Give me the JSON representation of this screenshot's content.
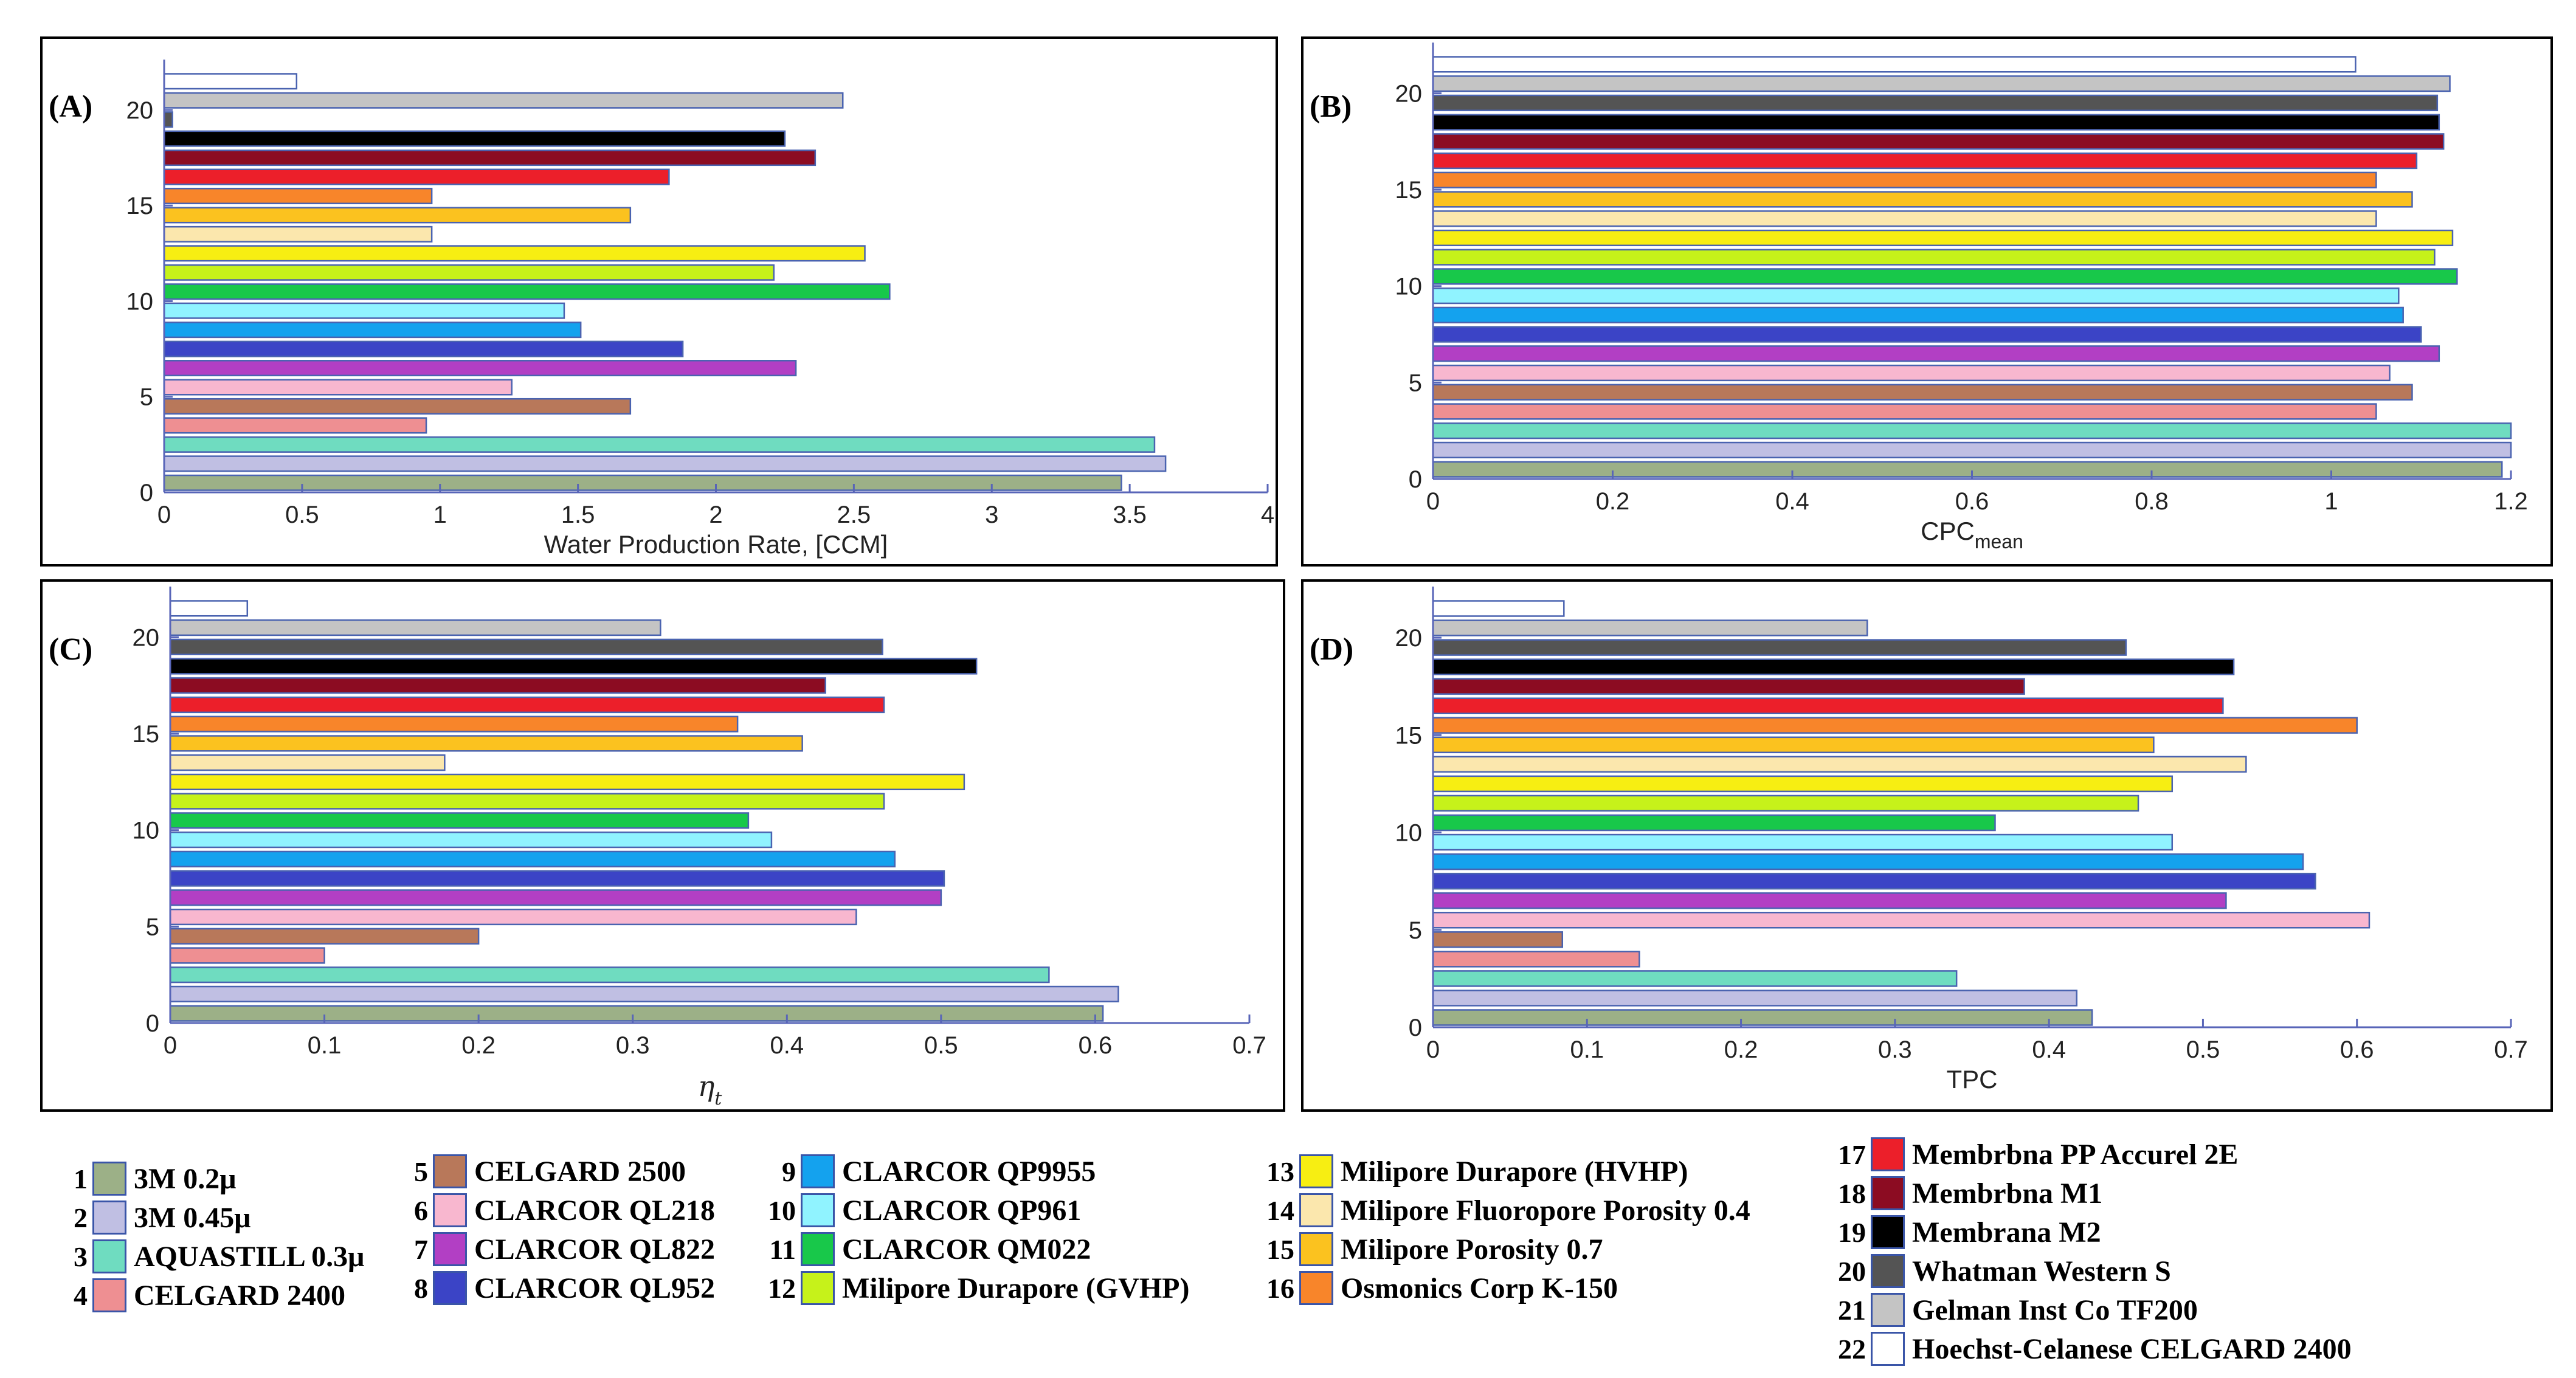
{
  "colors": [
    {
      "id": 1,
      "fill": "#9cb087",
      "stroke": "#4a63b0"
    },
    {
      "id": 2,
      "fill": "#c0bfe3",
      "stroke": "#4a63b0"
    },
    {
      "id": 3,
      "fill": "#6fdcc0",
      "stroke": "#4a63b0"
    },
    {
      "id": 4,
      "fill": "#ee8f92",
      "stroke": "#4a63b0"
    },
    {
      "id": 5,
      "fill": "#b8785a",
      "stroke": "#4a63b0"
    },
    {
      "id": 6,
      "fill": "#f8b7cf",
      "stroke": "#4a63b0"
    },
    {
      "id": 7,
      "fill": "#b23fc4",
      "stroke": "#4a63b0"
    },
    {
      "id": 8,
      "fill": "#3b44c6",
      "stroke": "#4a63b0"
    },
    {
      "id": 9,
      "fill": "#14a2ee",
      "stroke": "#4a63b0"
    },
    {
      "id": 10,
      "fill": "#90f3ff",
      "stroke": "#4a63b0"
    },
    {
      "id": 11,
      "fill": "#18c84a",
      "stroke": "#4a63b0"
    },
    {
      "id": 12,
      "fill": "#c6f21a",
      "stroke": "#4a63b0"
    },
    {
      "id": 13,
      "fill": "#f7ee12",
      "stroke": "#4a63b0"
    },
    {
      "id": 14,
      "fill": "#fbe7ad",
      "stroke": "#4a63b0"
    },
    {
      "id": 15,
      "fill": "#fbc21f",
      "stroke": "#4a63b0"
    },
    {
      "id": 16,
      "fill": "#f8852a",
      "stroke": "#4a63b0"
    },
    {
      "id": 17,
      "fill": "#ec1f2a",
      "stroke": "#4a63b0"
    },
    {
      "id": 18,
      "fill": "#8c0c22",
      "stroke": "#4a63b0"
    },
    {
      "id": 19,
      "fill": "#000000",
      "stroke": "#4a63b0"
    },
    {
      "id": 20,
      "fill": "#545454",
      "stroke": "#4a63b0"
    },
    {
      "id": 21,
      "fill": "#c4c4c4",
      "stroke": "#4a63b0"
    },
    {
      "id": 22,
      "fill": "#ffffff",
      "stroke": "#4a63b0"
    }
  ],
  "legend": [
    {
      "num": "1",
      "label": "3M 0.2μ"
    },
    {
      "num": "2",
      "label": "3M 0.45μ"
    },
    {
      "num": "3",
      "label": "AQUASTILL 0.3μ"
    },
    {
      "num": "4",
      "label": "CELGARD 2400"
    },
    {
      "num": "5",
      "label": "CELGARD 2500"
    },
    {
      "num": "6",
      "label": "CLARCOR QL218"
    },
    {
      "num": "7",
      "label": "CLARCOR QL822"
    },
    {
      "num": "8",
      "label": "CLARCOR QL952"
    },
    {
      "num": "9",
      "label": "CLARCOR QP9955"
    },
    {
      "num": "10",
      "label": "CLARCOR QP961"
    },
    {
      "num": "11",
      "label": "CLARCOR QM022"
    },
    {
      "num": "12",
      "label": "Milipore Durapore (GVHP)"
    },
    {
      "num": "13",
      "label": "Milipore Durapore (HVHP)"
    },
    {
      "num": "14",
      "label": "Milipore Fluoropore Porosity 0.4"
    },
    {
      "num": "15",
      "label": "Milipore Porosity 0.7"
    },
    {
      "num": "16",
      "label": "Osmonics Corp K-150"
    },
    {
      "num": "17",
      "label": "Membrbna PP Accurel 2E"
    },
    {
      "num": "18",
      "label": "Membrbna M1"
    },
    {
      "num": "19",
      "label": "Membrana M2"
    },
    {
      "num": "20",
      "label": "Whatman Western S"
    },
    {
      "num": "21",
      "label": "Gelman Inst Co TF200"
    },
    {
      "num": "22",
      "label": "Hoechst-Celanese CELGARD 2400"
    }
  ],
  "chart_data": [
    {
      "panel": "(A)",
      "type": "bar",
      "orientation": "horizontal",
      "xlabel": "Water Production Rate, [CCM]",
      "xlabel_sub": "",
      "xlim": [
        0,
        4
      ],
      "xticks": [
        "0",
        "0.5",
        "1",
        "1.5",
        "2",
        "2.5",
        "3",
        "3.5",
        "4"
      ],
      "xtick_values": [
        0,
        0.5,
        1,
        1.5,
        2,
        2.5,
        3,
        3.5,
        4
      ],
      "ylim": [
        0,
        22
      ],
      "yticks": [
        "0",
        "5",
        "10",
        "15",
        "20"
      ],
      "ytick_values": [
        0,
        5,
        10,
        15,
        20
      ],
      "categories": [
        1,
        2,
        3,
        4,
        5,
        6,
        7,
        8,
        9,
        10,
        11,
        12,
        13,
        14,
        15,
        16,
        17,
        18,
        19,
        20,
        21,
        22
      ],
      "values": [
        3.47,
        3.63,
        3.59,
        0.95,
        1.69,
        1.26,
        2.29,
        1.88,
        1.51,
        1.45,
        2.63,
        2.21,
        2.54,
        0.97,
        1.69,
        0.97,
        1.83,
        2.36,
        2.25,
        0.03,
        2.46,
        0.48
      ]
    },
    {
      "panel": "(B)",
      "type": "bar",
      "orientation": "horizontal",
      "xlabel": "CPC",
      "xlabel_sub": "mean",
      "xlim": [
        0,
        1.2
      ],
      "xticks": [
        "0",
        "0.2",
        "0.4",
        "0.6",
        "0.8",
        "1",
        "1.2"
      ],
      "xtick_values": [
        0,
        0.2,
        0.4,
        0.6,
        0.8,
        1.0,
        1.2
      ],
      "ylim": [
        0,
        22
      ],
      "yticks": [
        "0",
        "5",
        "10",
        "15",
        "20"
      ],
      "ytick_values": [
        0,
        5,
        10,
        15,
        20
      ],
      "categories": [
        1,
        2,
        3,
        4,
        5,
        6,
        7,
        8,
        9,
        10,
        11,
        12,
        13,
        14,
        15,
        16,
        17,
        18,
        19,
        20,
        21,
        22
      ],
      "values": [
        1.19,
        1.2,
        1.2,
        1.05,
        1.09,
        1.065,
        1.12,
        1.1,
        1.08,
        1.075,
        1.14,
        1.115,
        1.135,
        1.05,
        1.09,
        1.05,
        1.095,
        1.125,
        1.12,
        1.118,
        1.132,
        1.027
      ]
    },
    {
      "panel": "(C)",
      "type": "bar",
      "orientation": "horizontal",
      "xlabel": "η",
      "xlabel_sub": "t",
      "xlim": [
        0,
        0.7
      ],
      "xticks": [
        "0",
        "0.1",
        "0.2",
        "0.3",
        "0.4",
        "0.5",
        "0.6",
        "0.7"
      ],
      "xtick_values": [
        0,
        0.1,
        0.2,
        0.3,
        0.4,
        0.5,
        0.6,
        0.7
      ],
      "ylim": [
        0,
        22
      ],
      "yticks": [
        "0",
        "5",
        "10",
        "15",
        "20"
      ],
      "ytick_values": [
        0,
        5,
        10,
        15,
        20
      ],
      "categories": [
        1,
        2,
        3,
        4,
        5,
        6,
        7,
        8,
        9,
        10,
        11,
        12,
        13,
        14,
        15,
        16,
        17,
        18,
        19,
        20,
        21,
        22
      ],
      "values": [
        0.605,
        0.615,
        0.57,
        0.1,
        0.2,
        0.445,
        0.5,
        0.502,
        0.47,
        0.39,
        0.375,
        0.463,
        0.515,
        0.178,
        0.41,
        0.368,
        0.463,
        0.425,
        0.523,
        0.462,
        0.318,
        0.05
      ]
    },
    {
      "panel": "(D)",
      "type": "bar",
      "orientation": "horizontal",
      "xlabel": "TPC",
      "xlabel_sub": "",
      "xlim": [
        0,
        0.7
      ],
      "xticks": [
        "0",
        "0.1",
        "0.2",
        "0.3",
        "0.4",
        "0.5",
        "0.6",
        "0.7"
      ],
      "xtick_values": [
        0,
        0.1,
        0.2,
        0.3,
        0.4,
        0.5,
        0.6,
        0.7
      ],
      "ylim": [
        0,
        22
      ],
      "yticks": [
        "0",
        "5",
        "10",
        "15",
        "20"
      ],
      "ytick_values": [
        0,
        5,
        10,
        15,
        20
      ],
      "categories": [
        1,
        2,
        3,
        4,
        5,
        6,
        7,
        8,
        9,
        10,
        11,
        12,
        13,
        14,
        15,
        16,
        17,
        18,
        19,
        20,
        21,
        22
      ],
      "values": [
        0.428,
        0.418,
        0.34,
        0.134,
        0.084,
        0.608,
        0.515,
        0.573,
        0.565,
        0.48,
        0.365,
        0.458,
        0.48,
        0.528,
        0.468,
        0.6,
        0.513,
        0.384,
        0.52,
        0.45,
        0.282,
        0.085
      ]
    }
  ]
}
